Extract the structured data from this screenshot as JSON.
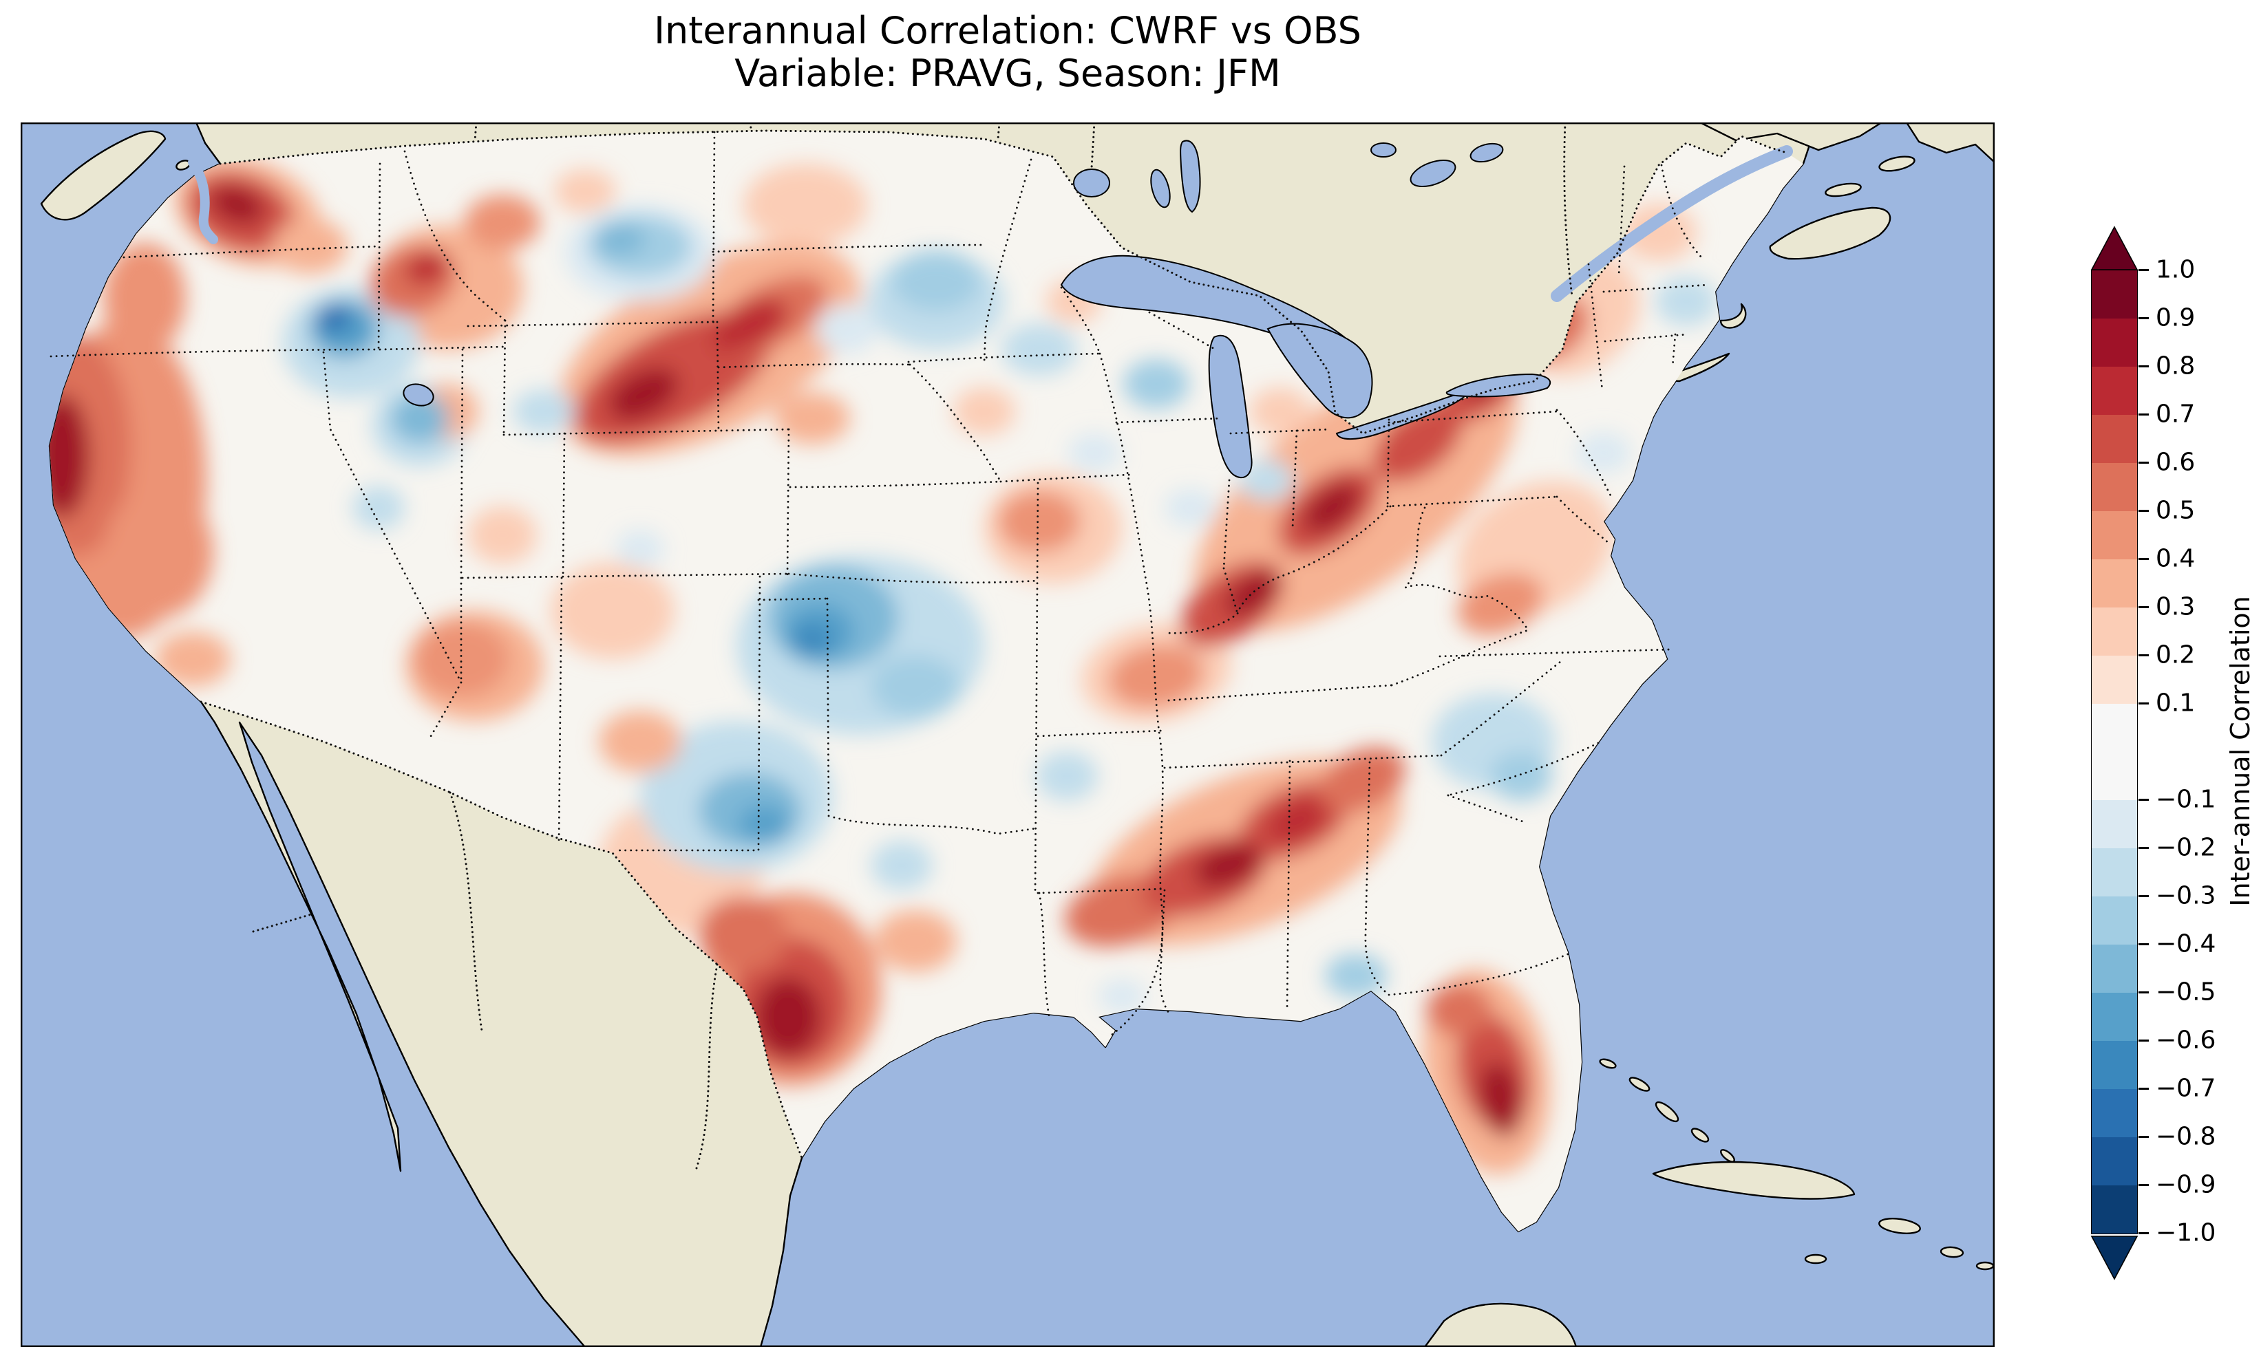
{
  "chart_data": {
    "type": "heatmap",
    "title_line1": "Interannual Correlation: CWRF vs OBS",
    "title_line2": "Variable: PRAVG, Season: JFM",
    "model": "CWRF",
    "reference": "OBS",
    "variable": "PRAVG",
    "season": "JFM",
    "region": "Contiguous United States",
    "colorbar": {
      "label": "Inter-annual Correlation",
      "tick_labels": [
        "1.0",
        "0.9",
        "0.8",
        "0.7",
        "0.6",
        "0.5",
        "0.4",
        "0.3",
        "0.2",
        "0.1",
        "−0.1",
        "−0.2",
        "−0.3",
        "−0.4",
        "−0.5",
        "−0.6",
        "−0.7",
        "−0.8",
        "−0.9",
        "−1.0"
      ],
      "tick_values": [
        1.0,
        0.9,
        0.8,
        0.7,
        0.6,
        0.5,
        0.4,
        0.3,
        0.2,
        0.1,
        -0.1,
        -0.2,
        -0.3,
        -0.4,
        -0.5,
        -0.6,
        -0.7,
        -0.8,
        -0.9,
        -1.0
      ],
      "band_colors_top_to_bottom": [
        "#7a0622",
        "#9f1228",
        "#bb2a33",
        "#cd4e44",
        "#dd715a",
        "#ec9375",
        "#f6b293",
        "#fbcdb6",
        "#fce2d3",
        "#f7f7f7",
        "#dbe9f2",
        "#c1ddeb",
        "#a2cde3",
        "#7eb8d7",
        "#57a0ca",
        "#3a88bd",
        "#2a71b2",
        "#1a5899",
        "#0c3e74"
      ],
      "extend_max_color": "#67001f",
      "extend_min_color": "#053061",
      "range": [
        -1.0,
        1.0
      ]
    },
    "map_colors": {
      "ocean": "#9db7e0",
      "land": "#eae7d2",
      "field_neutral": "#f7f5f0",
      "coastline": "#000000"
    },
    "field_highlights": [
      {
        "region": "Washington Cascades",
        "approx_correlation": 0.7
      },
      {
        "region": "Northern California coast",
        "approx_correlation": 0.8
      },
      {
        "region": "Colorado–Nebraska–South Dakota band",
        "approx_correlation": 0.7
      },
      {
        "region": "South Texas",
        "approx_correlation": 0.8
      },
      {
        "region": "Gulf Coast band (LA–MS–AL–GA)",
        "approx_correlation": 0.7
      },
      {
        "region": "Appalachians (KY–WV–PA–NY)",
        "approx_correlation": 0.7
      },
      {
        "region": "Florida peninsula",
        "approx_correlation": 0.8
      },
      {
        "region": "Central Nevada",
        "approx_correlation": -0.5
      },
      {
        "region": "Kansas–Oklahoma",
        "approx_correlation": -0.5
      },
      {
        "region": "West Texas",
        "approx_correlation": -0.4
      },
      {
        "region": "Minnesota–Wisconsin",
        "approx_correlation": -0.3
      },
      {
        "region": "Eastern Montana–Dakotas",
        "approx_correlation": -0.3
      }
    ]
  }
}
